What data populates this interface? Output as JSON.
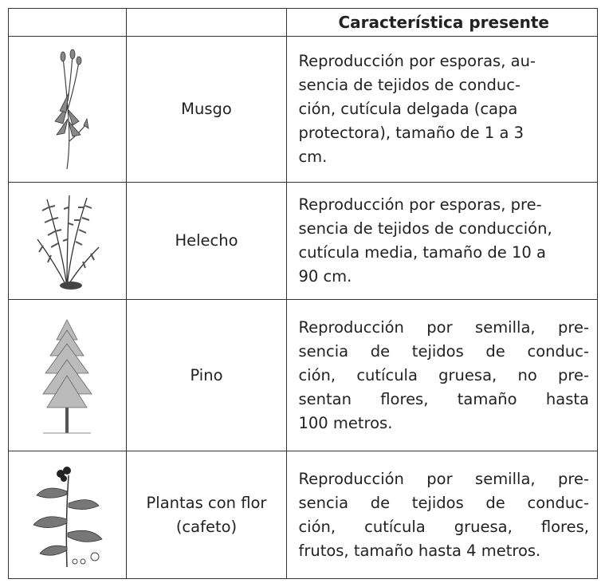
{
  "table": {
    "header": {
      "title": "Característica presente"
    },
    "rows": [
      {
        "name": [
          "Musgo"
        ],
        "description": [
          "Reproducción por esporas, au-",
          "sencia de tejidos de conduc-",
          "ción, cutícula delgada (capa",
          "protectora), tamaño de 1 a 3",
          "cm."
        ]
      },
      {
        "name": [
          "Helecho"
        ],
        "description": [
          "Reproducción por esporas, pre-",
          "sencia de tejidos de conducción,",
          "cutícula media, tamaño de 10 a",
          "90 cm."
        ]
      },
      {
        "name": [
          "Pino"
        ],
        "description": [
          "Reproducción por semilla, pre-",
          "sencia de tejidos de conduc-",
          "ción, cutícula gruesa, no pre-",
          "sentan flores, tamaño hasta",
          "100 metros."
        ]
      },
      {
        "name": [
          "Plantas con flor",
          "(cafeto)"
        ],
        "description": [
          "Reproducción por semilla, pre-",
          "sencia de tejidos de conduc-",
          "ción, cutícula gruesa, flores,",
          "frutos, tamaño hasta 4 metros."
        ]
      }
    ]
  }
}
